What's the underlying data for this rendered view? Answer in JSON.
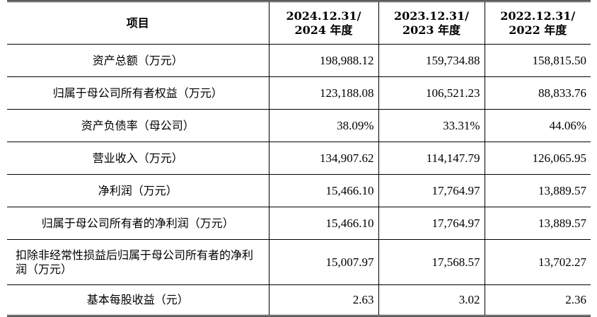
{
  "table": {
    "headers": [
      {
        "line1": "项目",
        "line2": ""
      },
      {
        "line1": "2024.12.31/",
        "line2": "2024 年度"
      },
      {
        "line1": "2023.12.31/",
        "line2": "2023 年度"
      },
      {
        "line1": "2022.12.31/",
        "line2": "2022 年度"
      }
    ],
    "rows": [
      {
        "label": "资产总额（万元）",
        "values": [
          "198,988.12",
          "159,734.88",
          "158,815.50"
        ]
      },
      {
        "label": "归属于母公司所有者权益（万元）",
        "values": [
          "123,188.08",
          "106,521.23",
          "88,833.76"
        ]
      },
      {
        "label": "资产负债率（母公司）",
        "values": [
          "38.09%",
          "33.31%",
          "44.06%"
        ]
      },
      {
        "label": "营业收入（万元）",
        "values": [
          "134,907.62",
          "114,147.79",
          "126,065.95"
        ]
      },
      {
        "label": "净利润（万元）",
        "values": [
          "15,466.10",
          "17,764.97",
          "13,889.57"
        ]
      },
      {
        "label": "归属于母公司所有者的净利润（万元）",
        "values": [
          "15,466.10",
          "17,764.97",
          "13,889.57"
        ]
      },
      {
        "label": "扣除非经常性损益后归属于母公司所有者的净利润（万元）",
        "values": [
          "15,007.97",
          "17,568.57",
          "13,702.27"
        ]
      },
      {
        "label": "基本每股收益（元）",
        "values": [
          "2.63",
          "3.02",
          "2.36"
        ]
      }
    ]
  }
}
